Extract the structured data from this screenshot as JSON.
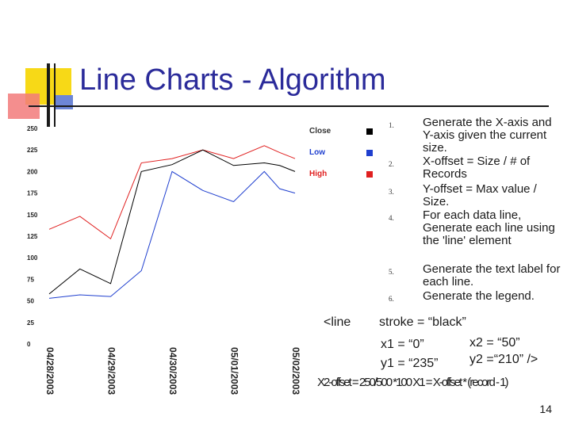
{
  "slide": {
    "title": "Line Charts - Algorithm",
    "page_number": "14"
  },
  "legend": [
    {
      "label": "Close",
      "color": "#000000"
    },
    {
      "label": "Low",
      "color": "#1f3fcf"
    },
    {
      "label": "High",
      "color": "#e02020"
    }
  ],
  "steps": [
    {
      "number": "1.",
      "text": "Generate the X-axis and Y-axis given the current size."
    },
    {
      "number": "2.",
      "text": "X-offset = Size / # of Records"
    },
    {
      "number": "3.",
      "text": "Y-offset = Max value / Size."
    },
    {
      "number": "4.",
      "text": "For each data line, Generate each line using the 'line' element"
    },
    {
      "number": "5.",
      "text": "Generate the text label for each line."
    },
    {
      "number": "6.",
      "text": "Generate the legend."
    }
  ],
  "code": {
    "line_tag": "<line",
    "stroke": "stroke = “black”",
    "x1": "x1 = “0”",
    "x2": "x2 = “50”",
    "y1": "y1 = “235”",
    "y2": "y2 =“210” />",
    "overlap_text": "X2-offset = 250/500 *100  X1 = X-offset * (record - 1)"
  },
  "chart_data": {
    "type": "line",
    "categories": [
      "04/28/2003",
      "04/29/2003",
      "04/30/2003",
      "05/01/2003",
      "05/02/2003"
    ],
    "ylim": [
      0,
      250
    ],
    "yticks": [
      "0",
      "25",
      "50",
      "75",
      "100",
      "125",
      "150",
      "175",
      "200",
      "225",
      "250"
    ],
    "x": [
      0,
      0.5,
      1,
      1.5,
      2,
      2.5,
      3,
      3.5,
      3.75,
      4
    ],
    "series": [
      {
        "name": "High",
        "color": "#e02020",
        "values": [
          133,
          148,
          122,
          210,
          215,
          225,
          215,
          230,
          222,
          215
        ]
      },
      {
        "name": "Close",
        "color": "#000000",
        "values": [
          58,
          87,
          70,
          200,
          208,
          225,
          207,
          210,
          207,
          200
        ]
      },
      {
        "name": "Low",
        "color": "#1f3fcf",
        "values": [
          53,
          57,
          55,
          85,
          200,
          178,
          165,
          200,
          180,
          175
        ]
      }
    ]
  }
}
